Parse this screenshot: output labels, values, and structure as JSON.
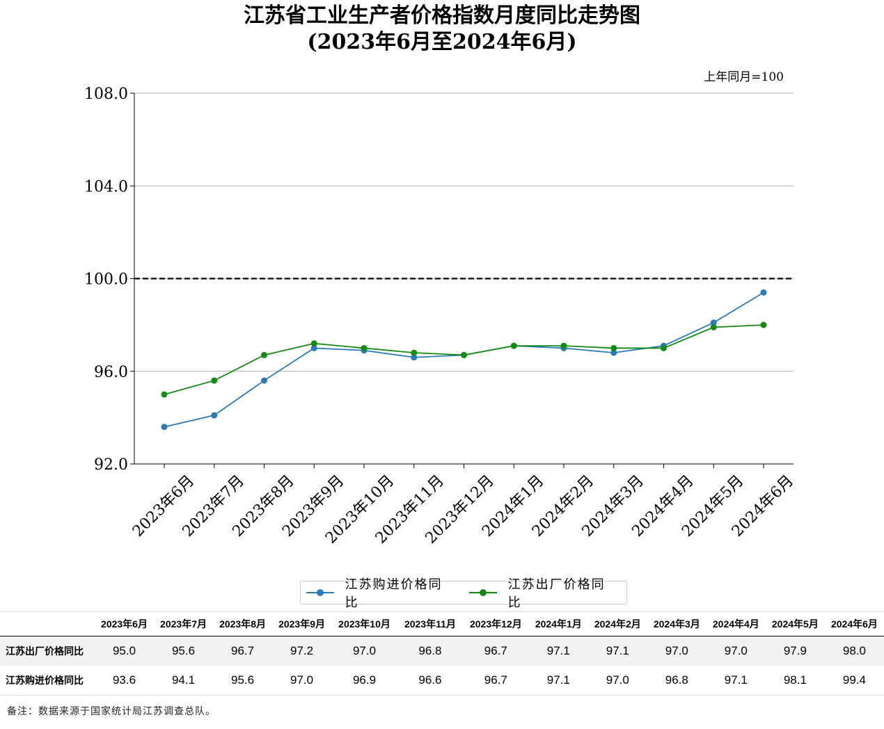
{
  "title_line1": "江苏省工业生产者价格指数月度同比走势图",
  "title_line2": "(2023年6月至2024年6月)",
  "unit_note": "上年同月=100",
  "footnote": "备注：数据来源于国家统计局江苏调查总队。",
  "chart_data": {
    "type": "line",
    "categories": [
      "2023年6月",
      "2023年7月",
      "2023年8月",
      "2023年9月",
      "2023年10月",
      "2023年11月",
      "2023年12月",
      "2024年1月",
      "2024年2月",
      "2024年3月",
      "2024年4月",
      "2024年5月",
      "2024年6月"
    ],
    "series": [
      {
        "name": "江苏购进价格同比",
        "color": "#2b7bba",
        "values": [
          93.6,
          94.1,
          95.6,
          97.0,
          96.9,
          96.6,
          96.7,
          97.1,
          97.0,
          96.8,
          97.1,
          98.1,
          99.4
        ]
      },
      {
        "name": "江苏出厂价格同比",
        "color": "#138a13",
        "values": [
          95.0,
          95.6,
          96.7,
          97.2,
          97.0,
          96.8,
          96.7,
          97.1,
          97.1,
          97.0,
          97.0,
          97.9,
          98.0
        ]
      }
    ],
    "ylim": [
      92.0,
      108.0
    ],
    "yticks": [
      "92.0",
      "96.0",
      "100.0",
      "104.0",
      "108.0"
    ],
    "reference_line": 100,
    "grid": "horizontal",
    "legend_position": "bottom-center"
  },
  "table": {
    "rows": [
      {
        "label": "江苏出厂价格同比",
        "values": [
          "95.0",
          "95.6",
          "96.7",
          "97.2",
          "97.0",
          "96.8",
          "96.7",
          "97.1",
          "97.1",
          "97.0",
          "97.0",
          "97.9",
          "98.0"
        ]
      },
      {
        "label": "江苏购进价格同比",
        "values": [
          "93.6",
          "94.1",
          "95.6",
          "97.0",
          "96.9",
          "96.6",
          "96.7",
          "97.1",
          "97.0",
          "96.8",
          "97.1",
          "98.1",
          "99.4"
        ]
      }
    ]
  }
}
